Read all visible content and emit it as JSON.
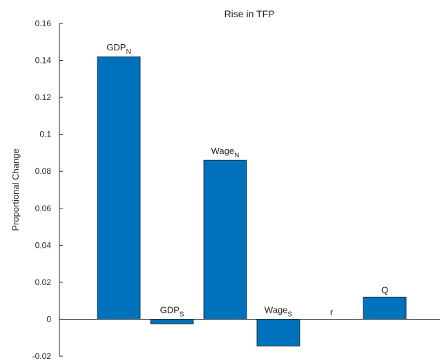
{
  "chart_data": {
    "type": "bar",
    "title": "Rise in TFP",
    "xlabel": "",
    "ylabel": "Proportional Change",
    "ylim": [
      -0.02,
      0.16
    ],
    "yticks": [
      "-0.02",
      "0",
      "0.02",
      "0.04",
      "0.06",
      "0.08",
      "0.1",
      "0.12",
      "0.14",
      "0.16"
    ],
    "bar_color": "#0072BD",
    "grid": false,
    "bars": [
      {
        "base": "GDP",
        "sub": "N",
        "value": 0.142
      },
      {
        "base": "GDP",
        "sub": "S",
        "value": -0.0025
      },
      {
        "base": "Wage",
        "sub": "N",
        "value": 0.086
      },
      {
        "base": "Wage",
        "sub": "S",
        "value": -0.0145
      },
      {
        "base": "r",
        "sub": "",
        "value": 0.0
      },
      {
        "base": "Q",
        "sub": "",
        "value": 0.012
      }
    ]
  }
}
